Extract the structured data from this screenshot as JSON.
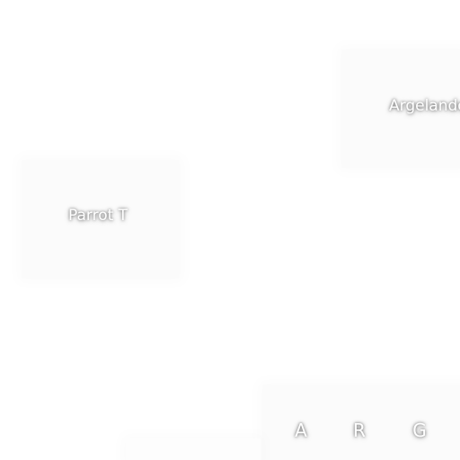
{
  "labels": {
    "argelander": "Argelander",
    "parrot": "Parrot T"
  },
  "keys": [
    {
      "label": "A"
    },
    {
      "label": "R"
    },
    {
      "label": "G"
    }
  ],
  "colors": {
    "background": "#ffffff",
    "card": "#fbfbfb",
    "text": "#ffffff"
  }
}
